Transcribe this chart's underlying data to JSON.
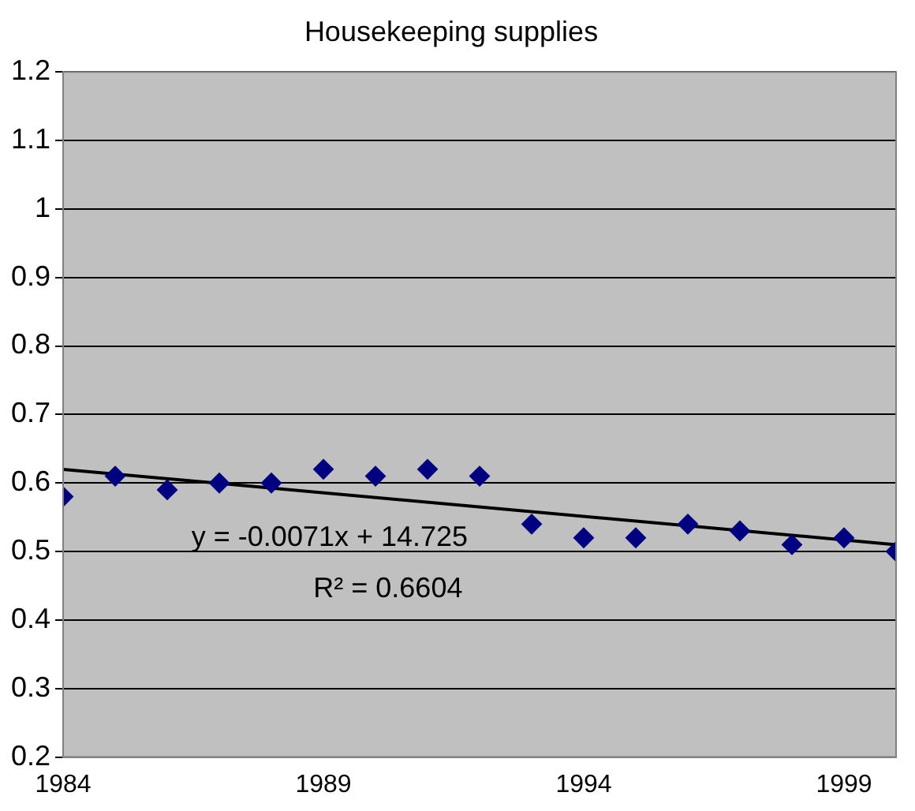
{
  "chart_data": {
    "type": "scatter",
    "title": "Housekeeping supplies",
    "x": [
      1984,
      1985,
      1986,
      1987,
      1988,
      1989,
      1990,
      1991,
      1992,
      1993,
      1994,
      1995,
      1996,
      1997,
      1998,
      1999,
      2000
    ],
    "series": [
      {
        "color": "#000080",
        "values": [
          0.58,
          0.61,
          0.59,
          0.6,
          0.6,
          0.62,
          0.61,
          0.62,
          0.61,
          0.54,
          0.52,
          0.52,
          0.54,
          0.53,
          0.51,
          0.52,
          0.5
        ]
      },
      {
        "type": "line",
        "marker": "none",
        "color": "#000000",
        "x": [
          1984,
          2000
        ],
        "values": [
          0.62,
          0.51
        ]
      }
    ],
    "xlim": [
      1984,
      2000
    ],
    "xticks": [
      1984,
      1989,
      1994,
      1999
    ],
    "ylim": [
      0.2,
      1.2
    ],
    "yticks": [
      0.2,
      0.3,
      0.4,
      0.5,
      0.6,
      0.7,
      0.8,
      0.9,
      1,
      1.1,
      1.2
    ],
    "grid": "y",
    "marker": "diamond",
    "line_style": "solid",
    "annotations": [
      "y = -0.0071x + 14.725",
      "R² = 0.6604"
    ]
  }
}
